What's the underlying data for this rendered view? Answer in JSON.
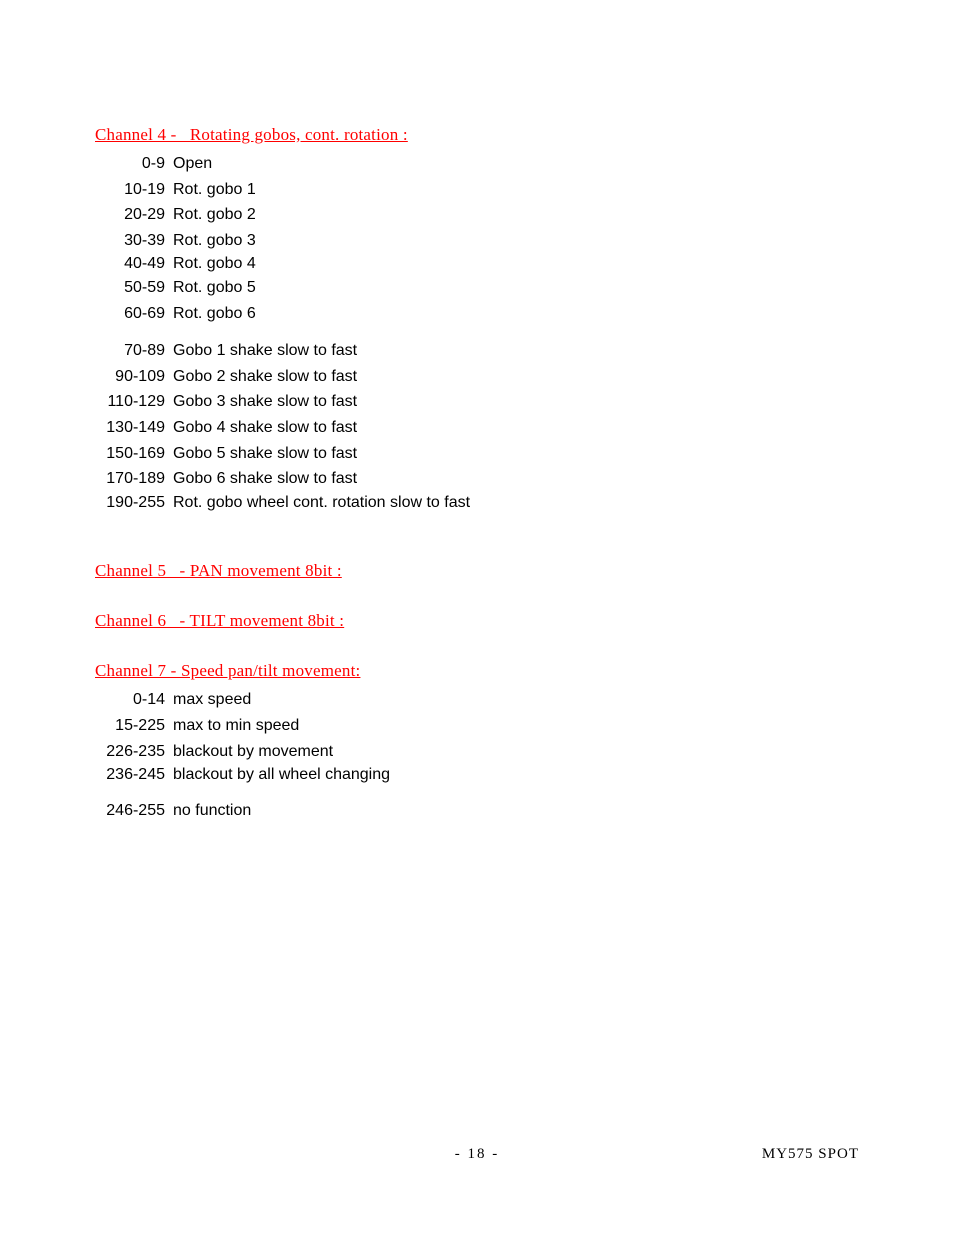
{
  "channel4": {
    "heading": "Channel 4 -   Rotating gobos, cont. rotation :",
    "rows": [
      {
        "range": "0-9",
        "desc": "Open"
      },
      {
        "range": "10-19",
        "desc": "Rot. gobo 1"
      },
      {
        "range": "20-29",
        "desc": "Rot. gobo 2"
      },
      {
        "range": "30-39",
        "desc": "Rot. gobo 3"
      },
      {
        "range": "40-49",
        "desc": "Rot. gobo 4"
      },
      {
        "range": "50-59",
        "desc": "Rot. gobo 5"
      },
      {
        "range": "60-69",
        "desc": "Rot. gobo 6"
      },
      {
        "range": "70-89",
        "desc": "Gobo 1 shake slow to fast"
      },
      {
        "range": "90-109",
        "desc": "Gobo 2 shake slow to fast"
      },
      {
        "range": "110-129",
        "desc": "Gobo 3 shake slow to fast"
      },
      {
        "range": "130-149",
        "desc": "Gobo 4 shake slow to fast"
      },
      {
        "range": "150-169",
        "desc": "Gobo 5 shake slow to fast"
      },
      {
        "range": "170-189",
        "desc": "Gobo 6 shake slow to fast"
      },
      {
        "range": "190-255",
        "desc": "Rot. gobo wheel cont. rotation slow to fast"
      }
    ]
  },
  "channel5": {
    "heading": "Channel 5   - PAN movement 8bit :"
  },
  "channel6": {
    "heading": "Channel 6   - TILT movement 8bit :"
  },
  "channel7": {
    "heading": "Channel 7 - Speed pan/tilt movement:",
    "rows": [
      {
        "range": "0-14",
        "desc": "max speed"
      },
      {
        "range": "15-225",
        "desc": "max to min speed"
      },
      {
        "range": "226-235",
        "desc": "blackout by movement"
      },
      {
        "range": "236-245",
        "desc": "blackout by all wheel changing"
      },
      {
        "range": "246-255",
        "desc": "no function"
      }
    ]
  },
  "footer": {
    "page": "- 18 -",
    "model": "MY575  SPOT"
  }
}
